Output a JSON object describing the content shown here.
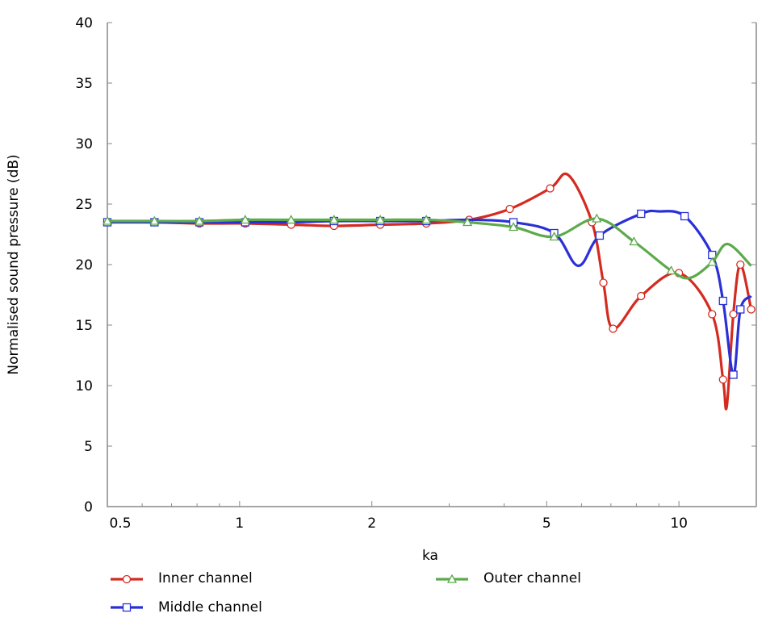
{
  "chart_data": {
    "type": "line",
    "title": "",
    "xlabel": "ka",
    "ylabel": "Normalised sound pressure  (dB)",
    "xscale": "log",
    "xlim": [
      0.5,
      15
    ],
    "ylim": [
      0,
      40
    ],
    "xticks": [
      0.5,
      1,
      2,
      5,
      10
    ],
    "xtick_labels": [
      "0.5",
      "1",
      "2",
      "5",
      "10"
    ],
    "yticks": [
      0,
      5,
      10,
      15,
      20,
      25,
      30,
      35,
      40
    ],
    "ytick_labels": [
      "0",
      "5",
      "10",
      "15",
      "20",
      "25",
      "30",
      "35",
      "40"
    ],
    "grid": false,
    "legend_placement": "bottom",
    "series": [
      {
        "name": "Inner channel",
        "color": "#d42b20",
        "marker": "circle",
        "x": [
          0.5,
          0.64,
          0.81,
          1.03,
          1.31,
          1.64,
          2.09,
          2.66,
          3.33,
          4.12,
          5.09,
          5.6,
          6.34,
          6.73,
          7.08,
          8.2,
          10.0,
          11.9,
          12.6,
          12.85,
          13.3,
          13.8,
          14.6
        ],
        "y": [
          23.5,
          23.5,
          23.4,
          23.4,
          23.3,
          23.2,
          23.3,
          23.4,
          23.7,
          24.6,
          26.3,
          27.4,
          23.5,
          18.5,
          14.7,
          17.4,
          19.3,
          15.9,
          10.5,
          8.3,
          15.9,
          20.0,
          16.3
        ],
        "markers": [
          true,
          true,
          true,
          true,
          true,
          true,
          true,
          true,
          true,
          true,
          true,
          false,
          true,
          true,
          true,
          true,
          true,
          true,
          true,
          false,
          true,
          true,
          true
        ]
      },
      {
        "name": "Middle channel",
        "color": "#2a30d6",
        "marker": "square",
        "x": [
          0.5,
          0.64,
          0.81,
          1.03,
          1.31,
          1.64,
          2.09,
          2.66,
          3.33,
          4.2,
          5.2,
          5.9,
          6.6,
          8.2,
          9.0,
          10.3,
          11.9,
          12.6,
          13.3,
          13.8,
          14.6
        ],
        "y": [
          23.5,
          23.5,
          23.5,
          23.5,
          23.5,
          23.6,
          23.6,
          23.6,
          23.7,
          23.5,
          22.6,
          19.9,
          22.4,
          24.2,
          24.4,
          24.0,
          20.8,
          17.0,
          10.9,
          16.3,
          17.4
        ],
        "markers": [
          true,
          true,
          true,
          true,
          false,
          true,
          true,
          true,
          false,
          true,
          true,
          false,
          true,
          true,
          false,
          true,
          true,
          true,
          true,
          true,
          false
        ]
      },
      {
        "name": "Outer channel",
        "color": "#5caa4c",
        "marker": "triangle",
        "x": [
          0.5,
          0.64,
          0.81,
          1.03,
          1.31,
          1.64,
          2.09,
          2.66,
          3.3,
          4.2,
          5.2,
          6.5,
          7.9,
          9.6,
          10.6,
          11.9,
          12.9,
          14.6
        ],
        "y": [
          23.6,
          23.6,
          23.6,
          23.7,
          23.7,
          23.7,
          23.7,
          23.7,
          23.5,
          23.1,
          22.3,
          23.8,
          21.9,
          19.5,
          18.9,
          20.2,
          21.7,
          19.9
        ],
        "markers": [
          true,
          true,
          true,
          true,
          true,
          true,
          true,
          true,
          true,
          true,
          true,
          true,
          true,
          true,
          false,
          true,
          false,
          false
        ]
      }
    ]
  }
}
